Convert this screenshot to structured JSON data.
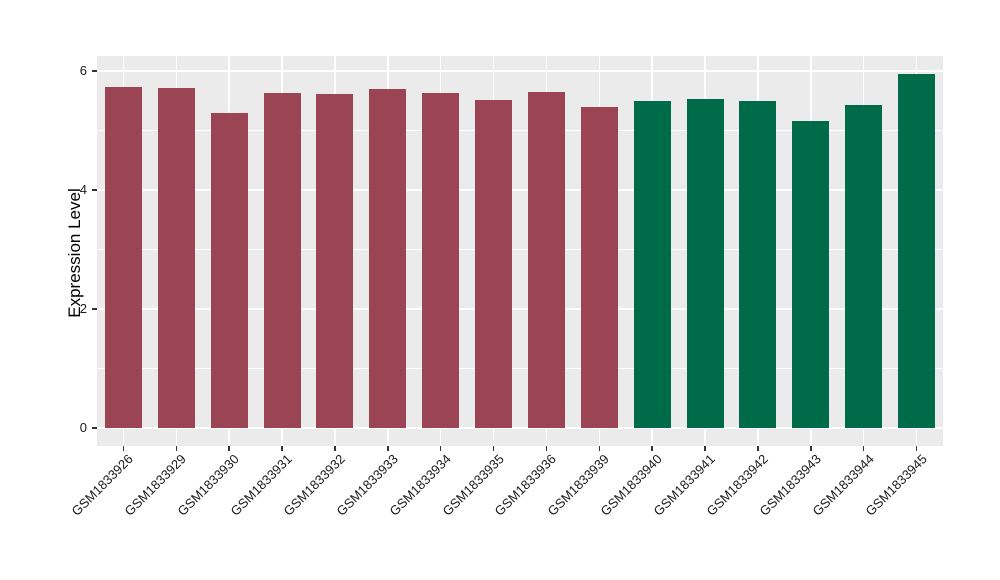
{
  "chart_data": {
    "type": "bar",
    "title": "",
    "ylabel": "Expression Level",
    "xlabel": "",
    "categories": [
      "GSM1833926",
      "GSM1833929",
      "GSM1833930",
      "GSM1833931",
      "GSM1833932",
      "GSM1833933",
      "GSM1833934",
      "GSM1833935",
      "GSM1833936",
      "GSM1833939",
      "GSM1833940",
      "GSM1833941",
      "GSM1833942",
      "GSM1833943",
      "GSM1833944",
      "GSM1833945"
    ],
    "values": [
      5.73,
      5.71,
      5.3,
      5.63,
      5.62,
      5.7,
      5.63,
      5.51,
      5.65,
      5.39,
      5.49,
      5.53,
      5.49,
      5.16,
      5.42,
      5.95
    ],
    "bar_colors": [
      "#9B4453",
      "#9B4453",
      "#9B4453",
      "#9B4453",
      "#9B4453",
      "#9B4453",
      "#9B4453",
      "#9B4453",
      "#9B4453",
      "#9B4453",
      "#006B48",
      "#006B48",
      "#006B48",
      "#006B48",
      "#006B48",
      "#006B48"
    ],
    "group_colors": {
      "group1": "#9B4453",
      "group2": "#006B48"
    },
    "yticks": [
      0,
      2,
      4,
      6
    ],
    "minor_yticks": [
      1,
      3,
      5
    ],
    "ylim": [
      -0.3,
      6.25
    ],
    "grid": "on",
    "legend": "none",
    "panel_bg": "#EBEBEB",
    "grid_color": "#FFFFFF",
    "tick_color": "#333333"
  }
}
